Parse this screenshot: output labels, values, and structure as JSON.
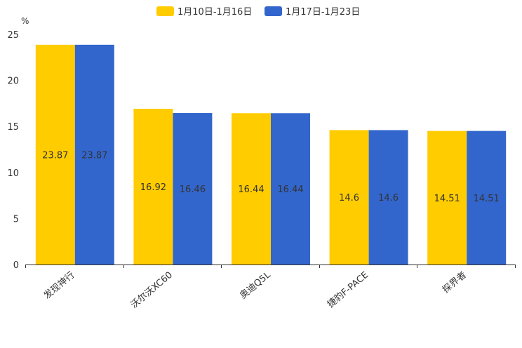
{
  "chart_data": {
    "type": "bar",
    "y_unit": "%",
    "categories": [
      "发现神行",
      "沃尔沃XC60",
      "奥迪Q5L",
      "捷豹F-PACE",
      "探界者"
    ],
    "series": [
      {
        "name": "1月10日-1月16日",
        "color": "#FFCC00",
        "values": [
          23.87,
          16.92,
          16.44,
          14.6,
          14.51
        ],
        "labels": [
          "23.87",
          "16.92",
          "16.44",
          "14.6",
          "14.51"
        ]
      },
      {
        "name": "1月17日-1月23日",
        "color": "#3366CC",
        "values": [
          23.87,
          16.46,
          16.44,
          14.6,
          14.51
        ],
        "labels": [
          "23.87",
          "16.46",
          "16.44",
          "14.6",
          "14.51"
        ]
      }
    ],
    "ylim": [
      0,
      25
    ],
    "yticks": [
      "0",
      "5",
      "10",
      "15",
      "20",
      "25"
    ],
    "legend_position": "top-center",
    "grid": false
  }
}
